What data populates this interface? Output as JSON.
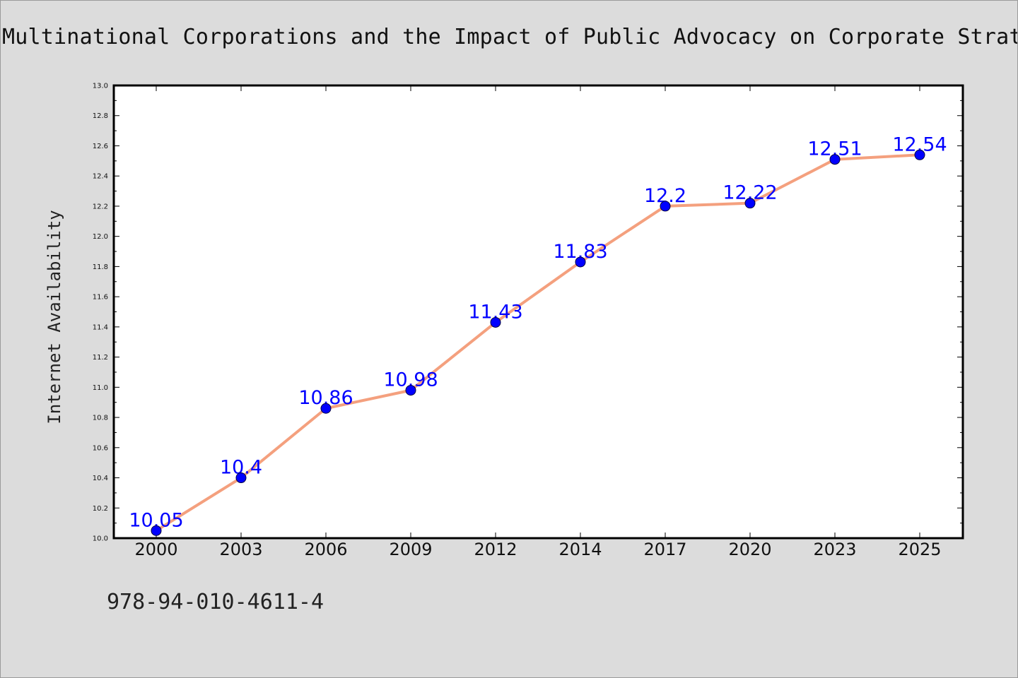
{
  "title": "Multinational Corporations and the Impact of Public Advocacy on Corporate Strate",
  "footer_text": "978-94-010-4611-4",
  "colors": {
    "background": "#dcdcdc",
    "plot_background": "#ffffff",
    "line": "#f4a07e",
    "marker": "#0000ff",
    "data_label": "#0000ff"
  },
  "chart_data": {
    "type": "line",
    "title": "Multinational Corporations and the Impact of Public Advocacy on Corporate Strate",
    "xlabel": "",
    "ylabel": "Internet Availability",
    "categories": [
      "2000",
      "2003",
      "2006",
      "2009",
      "2012",
      "2014",
      "2017",
      "2020",
      "2023",
      "2025"
    ],
    "series": [
      {
        "values": [
          10.05,
          10.4,
          10.86,
          10.98,
          11.43,
          11.83,
          12.2,
          12.22,
          12.51,
          12.54
        ]
      }
    ],
    "data_labels": [
      "10.05",
      "10.4",
      "10.86",
      "10.98",
      "11.43",
      "11.83",
      "12.2",
      "12.22",
      "12.51",
      "12.54"
    ],
    "ylim": [
      10.0,
      13.0
    ],
    "y_ticks": [
      "10.0",
      "10.2",
      "10.4",
      "10.6",
      "10.8",
      "11.0",
      "11.2",
      "11.4",
      "11.6",
      "11.8",
      "12.0",
      "12.2",
      "12.4",
      "12.6",
      "12.8",
      "13.0"
    ],
    "grid": false,
    "legend": "none"
  }
}
